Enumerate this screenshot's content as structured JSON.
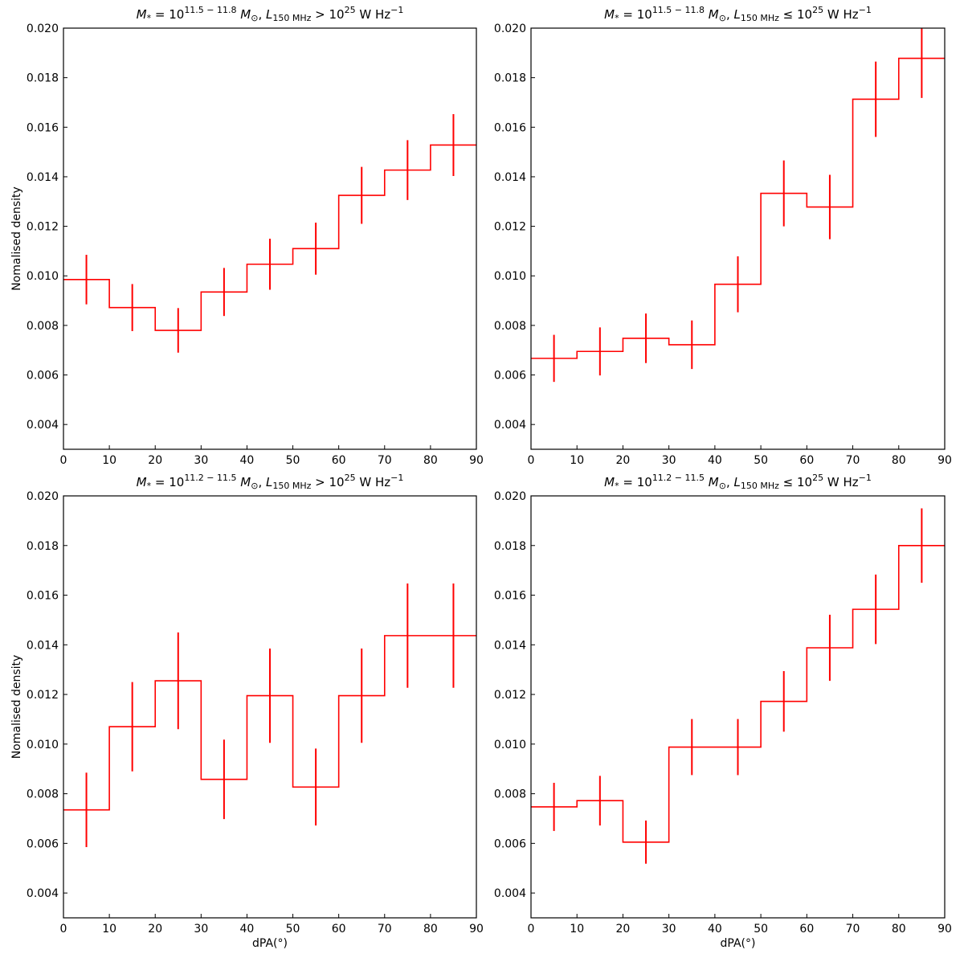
{
  "chart_data": [
    {
      "type": "step",
      "title_parts": {
        "lhs": "M",
        "lhs_sub": "*",
        "eq": " = 10",
        "exp": "11.5 − 11.8",
        "unit": " M",
        "unit_sub": "⊙",
        "sep": ", L",
        "l_sub": "150 MHz",
        "rel": " > 10",
        "rel_exp": "25",
        "tail": " W Hz",
        "tail_exp": "−1"
      },
      "xlabel": "",
      "ylabel": "Nomalised density",
      "xlim": [
        0,
        90
      ],
      "ylim": [
        0.003,
        0.02
      ],
      "xticks": [
        "0",
        "10",
        "20",
        "30",
        "40",
        "50",
        "60",
        "70",
        "80",
        "90"
      ],
      "yticks": [
        "0.004",
        "0.006",
        "0.008",
        "0.010",
        "0.012",
        "0.014",
        "0.016",
        "0.018",
        "0.020"
      ],
      "color": "#ff0000",
      "bin_edges": [
        0,
        10,
        20,
        30,
        40,
        50,
        60,
        70,
        80,
        90
      ],
      "x": [
        5,
        15,
        25,
        35,
        45,
        55,
        65,
        75,
        85
      ],
      "values": [
        0.00985,
        0.00872,
        0.0078,
        0.00935,
        0.01047,
        0.0111,
        0.01325,
        0.01427,
        0.01528
      ],
      "errors": [
        0.001,
        0.00095,
        0.0009,
        0.00097,
        0.00103,
        0.00105,
        0.00115,
        0.00121,
        0.00125
      ]
    },
    {
      "type": "step",
      "title_parts": {
        "lhs": "M",
        "lhs_sub": "*",
        "eq": " = 10",
        "exp": "11.5 − 11.8",
        "unit": " M",
        "unit_sub": "⊙",
        "sep": ", L",
        "l_sub": "150 MHz",
        "rel": " ≤ 10",
        "rel_exp": "25",
        "tail": " W Hz",
        "tail_exp": "−1"
      },
      "xlabel": "",
      "ylabel": "",
      "xlim": [
        0,
        90
      ],
      "ylim": [
        0.003,
        0.02
      ],
      "xticks": [
        "0",
        "10",
        "20",
        "30",
        "40",
        "50",
        "60",
        "70",
        "80",
        "90"
      ],
      "yticks": [
        "0.004",
        "0.006",
        "0.008",
        "0.010",
        "0.012",
        "0.014",
        "0.016",
        "0.018",
        "0.020"
      ],
      "color": "#ff0000",
      "bin_edges": [
        0,
        10,
        20,
        30,
        40,
        50,
        60,
        70,
        80,
        90
      ],
      "x": [
        5,
        15,
        25,
        35,
        45,
        55,
        65,
        75,
        85
      ],
      "values": [
        0.00667,
        0.00695,
        0.00748,
        0.00722,
        0.00966,
        0.01333,
        0.01278,
        0.01713,
        0.01878
      ],
      "errors": [
        0.00095,
        0.00097,
        0.001,
        0.00098,
        0.00113,
        0.00133,
        0.0013,
        0.00152,
        0.0016
      ]
    },
    {
      "type": "step",
      "title_parts": {
        "lhs": "M",
        "lhs_sub": "*",
        "eq": " = 10",
        "exp": "11.2 − 11.5",
        "unit": " M",
        "unit_sub": "⊙",
        "sep": ", L",
        "l_sub": "150 MHz",
        "rel": " > 10",
        "rel_exp": "25",
        "tail": " W Hz",
        "tail_exp": "−1"
      },
      "xlabel": "dPA(°)",
      "ylabel": "Nomalised density",
      "xlim": [
        0,
        90
      ],
      "ylim": [
        0.003,
        0.02
      ],
      "xticks": [
        "0",
        "10",
        "20",
        "30",
        "40",
        "50",
        "60",
        "70",
        "80",
        "90"
      ],
      "yticks": [
        "0.004",
        "0.006",
        "0.008",
        "0.010",
        "0.012",
        "0.014",
        "0.016",
        "0.018",
        "0.020"
      ],
      "color": "#ff0000",
      "bin_edges": [
        0,
        10,
        20,
        30,
        40,
        50,
        60,
        70,
        80,
        90
      ],
      "x": [
        5,
        15,
        25,
        35,
        45,
        55,
        65,
        75,
        85
      ],
      "values": [
        0.00735,
        0.0107,
        0.01255,
        0.00858,
        0.01195,
        0.00827,
        0.01195,
        0.01437,
        0.01437
      ],
      "errors": [
        0.0015,
        0.0018,
        0.00195,
        0.0016,
        0.0019,
        0.00155,
        0.0019,
        0.0021,
        0.0021
      ]
    },
    {
      "type": "step",
      "title_parts": {
        "lhs": "M",
        "lhs_sub": "*",
        "eq": " = 10",
        "exp": "11.2 − 11.5",
        "unit": " M",
        "unit_sub": "⊙",
        "sep": ", L",
        "l_sub": "150 MHz",
        "rel": " ≤ 10",
        "rel_exp": "25",
        "tail": " W Hz",
        "tail_exp": "−1"
      },
      "xlabel": "dPA(°)",
      "ylabel": "",
      "xlim": [
        0,
        90
      ],
      "ylim": [
        0.003,
        0.02
      ],
      "xticks": [
        "0",
        "10",
        "20",
        "30",
        "40",
        "50",
        "60",
        "70",
        "80",
        "90"
      ],
      "yticks": [
        "0.004",
        "0.006",
        "0.008",
        "0.010",
        "0.012",
        "0.014",
        "0.016",
        "0.018",
        "0.020"
      ],
      "color": "#ff0000",
      "bin_edges": [
        0,
        10,
        20,
        30,
        40,
        50,
        60,
        70,
        80,
        90
      ],
      "x": [
        5,
        15,
        25,
        35,
        45,
        55,
        65,
        75,
        85
      ],
      "values": [
        0.00747,
        0.00772,
        0.00605,
        0.00988,
        0.00988,
        0.01172,
        0.01388,
        0.01543,
        0.018
      ],
      "errors": [
        0.00097,
        0.001,
        0.00087,
        0.00113,
        0.00113,
        0.00122,
        0.00133,
        0.0014,
        0.0015
      ]
    }
  ]
}
